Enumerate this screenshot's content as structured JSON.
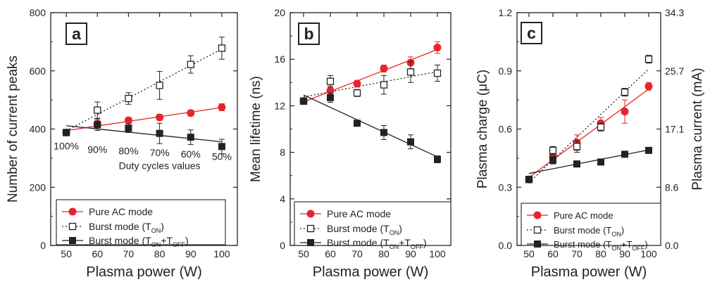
{
  "chart_data": [
    {
      "panel": "a",
      "type": "scatter",
      "xlabel": "Plasma power (W)",
      "ylabel": "Number of current peaks",
      "xlim": [
        45,
        105
      ],
      "ylim": [
        0,
        800
      ],
      "xticks": [
        "50",
        "60",
        "70",
        "80",
        "90",
        "100"
      ],
      "yticks": [
        "0",
        "200",
        "400",
        "600",
        "800"
      ],
      "x": [
        50,
        60,
        70,
        80,
        90,
        100
      ],
      "series": [
        {
          "name": "Pure AC mode",
          "style": "filled-circle",
          "values": [
            388,
            418,
            430,
            440,
            455,
            475
          ],
          "errors": [
            0,
            12,
            10,
            10,
            10,
            12
          ]
        },
        {
          "name": "Burst mode (TON)",
          "style": "open-square",
          "values": [
            388,
            465,
            505,
            550,
            622,
            678
          ],
          "errors": [
            0,
            28,
            20,
            48,
            30,
            38
          ]
        },
        {
          "name": "Burst mode (TON+TOFF)",
          "style": "filled-square",
          "values": [
            388,
            415,
            403,
            385,
            372,
            340
          ],
          "errors": [
            0,
            20,
            15,
            35,
            25,
            25
          ]
        }
      ],
      "annotations": {
        "duty_cycles": [
          "100%",
          "90%",
          "80%",
          "70%",
          "60%",
          "50%"
        ],
        "duty_caption": "Duty cycles values"
      }
    },
    {
      "panel": "b",
      "type": "scatter",
      "xlabel": "Plasma power (W)",
      "ylabel": "Mean lifetime (ns)",
      "xlim": [
        45,
        105
      ],
      "ylim": [
        0,
        20
      ],
      "xticks": [
        "50",
        "60",
        "70",
        "80",
        "90",
        "100"
      ],
      "yticks": [
        "0",
        "4",
        "8",
        "12",
        "16",
        "20"
      ],
      "x": [
        50,
        60,
        70,
        80,
        90,
        100
      ],
      "series": [
        {
          "name": "Pure AC mode",
          "style": "filled-circle",
          "values": [
            12.4,
            13.3,
            13.9,
            15.2,
            15.7,
            17.0
          ],
          "errors": [
            0,
            0.4,
            0.3,
            0.3,
            0.5,
            0.5
          ]
        },
        {
          "name": "Burst mode (TON)",
          "style": "open-square",
          "values": [
            12.4,
            14.1,
            13.1,
            13.8,
            14.9,
            14.8
          ],
          "errors": [
            0,
            0.5,
            0.3,
            0.8,
            0.9,
            0.7
          ]
        },
        {
          "name": "Burst mode (TON+TOFF)",
          "style": "filled-square",
          "values": [
            12.4,
            12.7,
            10.5,
            9.7,
            8.9,
            7.4
          ],
          "errors": [
            0,
            0.4,
            0.2,
            0.6,
            0.6,
            0.3
          ]
        }
      ]
    },
    {
      "panel": "c",
      "type": "scatter",
      "xlabel": "Plasma power (W)",
      "ylabel": "Plasma charge (μC)",
      "ylabel_right": "Plasma current (mA)",
      "xlim": [
        45,
        105
      ],
      "ylim": [
        0,
        1.2
      ],
      "xticks": [
        "50",
        "60",
        "70",
        "80",
        "90",
        "100"
      ],
      "yticks": [
        "0.0",
        "0.3",
        "0.6",
        "0.9",
        "1.2"
      ],
      "yticks_right": [
        "0.0",
        "8.6",
        "17.1",
        "25.7",
        "34.3"
      ],
      "x": [
        50,
        60,
        70,
        80,
        90,
        100
      ],
      "series": [
        {
          "name": "Pure AC mode",
          "style": "filled-circle",
          "values": [
            0.34,
            0.46,
            0.53,
            0.63,
            0.69,
            0.82
          ],
          "errors": [
            0,
            0.02,
            0.04,
            0.03,
            0.06,
            0.02
          ]
        },
        {
          "name": "Burst mode (TON)",
          "style": "open-square",
          "values": [
            0.34,
            0.49,
            0.51,
            0.61,
            0.79,
            0.96
          ],
          "errors": [
            0,
            0.02,
            0.03,
            0.02,
            0.02,
            0.02
          ]
        },
        {
          "name": "Burst mode (TON+TOFF)",
          "style": "filled-square",
          "values": [
            0.34,
            0.44,
            0.42,
            0.43,
            0.47,
            0.49
          ],
          "errors": [
            0,
            0.02,
            0.01,
            0.01,
            0.01,
            0.01
          ]
        }
      ]
    }
  ],
  "legend": {
    "entries": [
      {
        "text": "Pure AC mode",
        "sub": []
      },
      {
        "text": "Burst mode (T",
        "sub": [
          "ON"
        ],
        "tail": ")"
      },
      {
        "text": "Burst mode (T",
        "sub": [
          "ON",
          "+T",
          "OFF"
        ],
        "tail": ")"
      }
    ]
  },
  "colors": {
    "pure_ac": "#e8242b",
    "burst": "#222222"
  }
}
